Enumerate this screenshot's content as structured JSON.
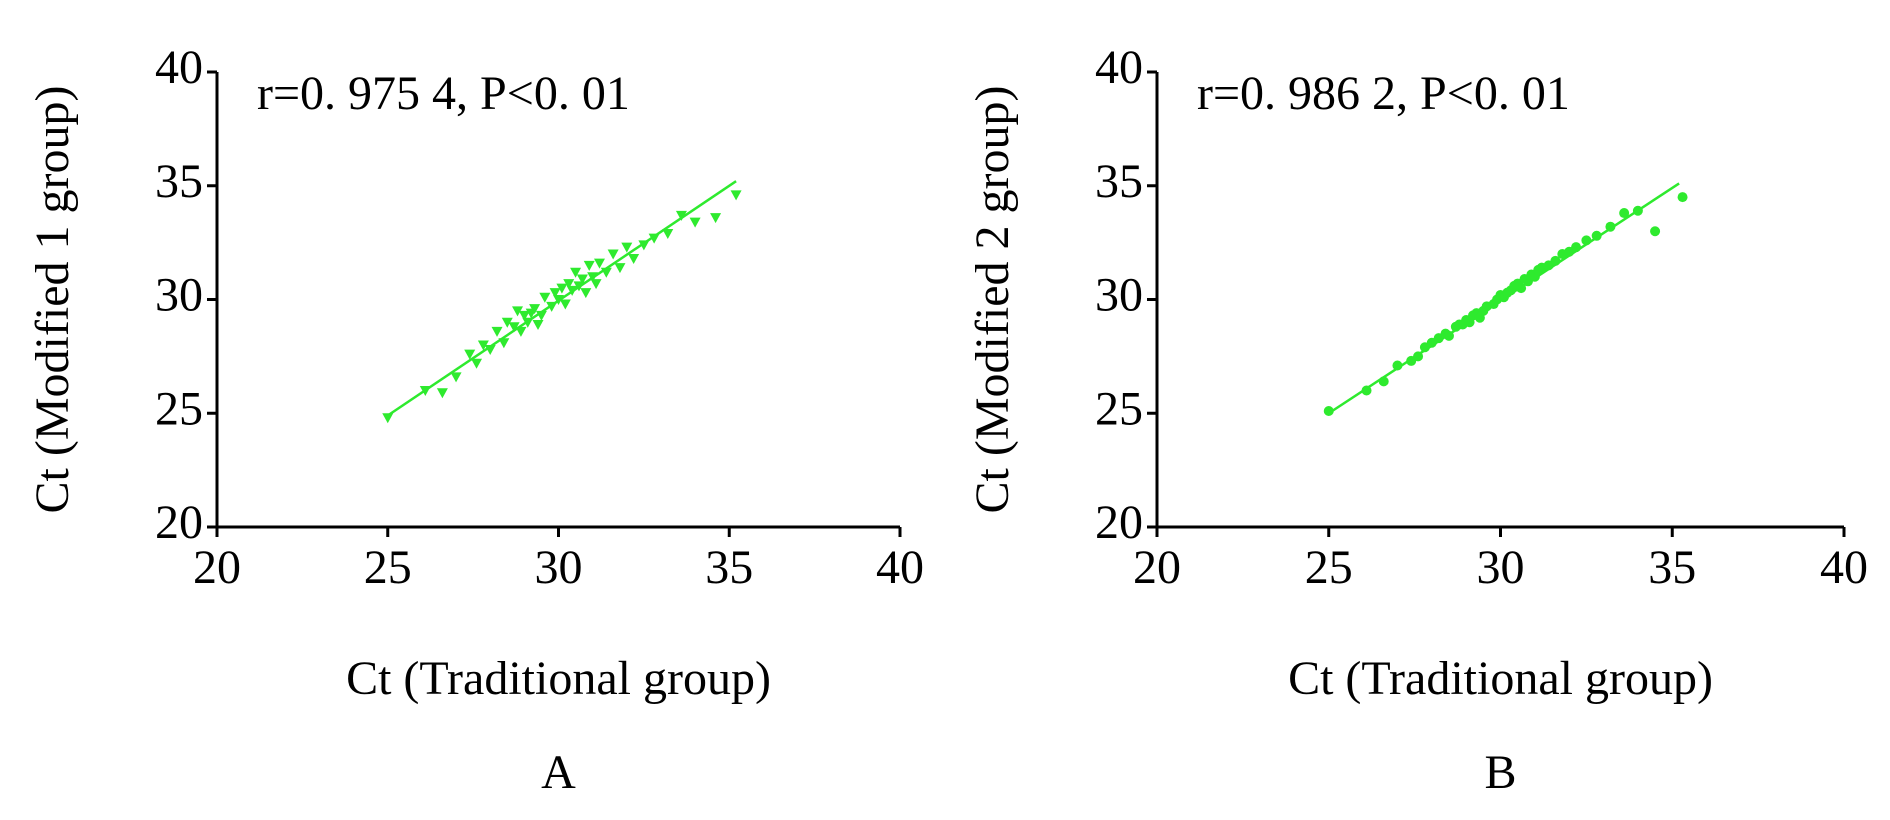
{
  "chart_data": [
    {
      "type": "scatter",
      "annotation": "r=0. 975 4, P<0. 01",
      "xlabel": "Ct (Traditional group)",
      "ylabel": "Ct (Modified 1 group)",
      "panel": "A",
      "marker": "triangle-down",
      "color": "#2eea2e",
      "x": [
        25.0,
        26.1,
        26.6,
        27.0,
        27.4,
        27.6,
        27.8,
        28.0,
        28.2,
        28.4,
        28.5,
        28.7,
        28.8,
        28.9,
        29.0,
        29.1,
        29.2,
        29.3,
        29.4,
        29.5,
        29.6,
        29.8,
        29.9,
        30.0,
        30.1,
        30.2,
        30.3,
        30.4,
        30.5,
        30.6,
        30.7,
        30.8,
        30.9,
        31.0,
        31.1,
        31.2,
        31.4,
        31.6,
        31.8,
        32.0,
        32.2,
        32.5,
        32.8,
        33.2,
        33.6,
        34.0,
        34.6,
        35.2
      ],
      "values": [
        24.8,
        26.0,
        25.9,
        26.6,
        27.6,
        27.2,
        28.0,
        27.8,
        28.6,
        28.1,
        29.0,
        28.8,
        29.5,
        28.6,
        29.3,
        29.0,
        29.4,
        29.6,
        28.9,
        29.3,
        30.1,
        29.7,
        30.3,
        30.0,
        30.5,
        29.8,
        30.7,
        30.4,
        31.2,
        30.6,
        30.9,
        30.3,
        31.5,
        31.0,
        30.7,
        31.6,
        31.2,
        32.0,
        31.4,
        32.3,
        31.8,
        32.4,
        32.7,
        32.9,
        33.7,
        33.4,
        33.6,
        34.6
      ],
      "fit": {
        "x": [
          25.0,
          35.2
        ],
        "y": [
          24.9,
          35.2
        ]
      },
      "xlim": [
        20,
        40
      ],
      "ylim": [
        20,
        40
      ],
      "xticks": [
        20,
        25,
        30,
        35,
        40
      ],
      "yticks": [
        20,
        25,
        30,
        35,
        40
      ]
    },
    {
      "type": "scatter",
      "annotation": "r=0. 986 2, P<0. 01",
      "xlabel": "Ct (Traditional group)",
      "ylabel": "Ct (Modified 2 group)",
      "panel": "B",
      "marker": "circle",
      "color": "#2eea2e",
      "x": [
        25.0,
        26.1,
        26.6,
        27.0,
        27.4,
        27.6,
        27.8,
        28.0,
        28.2,
        28.4,
        28.5,
        28.7,
        28.8,
        28.9,
        29.0,
        29.1,
        29.2,
        29.3,
        29.4,
        29.5,
        29.6,
        29.8,
        29.9,
        30.0,
        30.1,
        30.2,
        30.3,
        30.4,
        30.5,
        30.6,
        30.7,
        30.8,
        30.9,
        31.0,
        31.1,
        31.2,
        31.4,
        31.6,
        31.8,
        32.0,
        32.2,
        32.5,
        32.8,
        33.2,
        33.6,
        34.0,
        34.5,
        35.3
      ],
      "values": [
        25.1,
        26.0,
        26.4,
        27.1,
        27.3,
        27.5,
        27.9,
        28.1,
        28.3,
        28.5,
        28.4,
        28.8,
        28.9,
        28.9,
        29.1,
        29.0,
        29.3,
        29.4,
        29.2,
        29.5,
        29.7,
        29.8,
        30.0,
        30.2,
        30.1,
        30.3,
        30.4,
        30.6,
        30.7,
        30.5,
        30.9,
        30.8,
        31.1,
        31.0,
        31.3,
        31.4,
        31.5,
        31.7,
        32.0,
        32.1,
        32.3,
        32.6,
        32.8,
        33.2,
        33.8,
        33.9,
        33.0,
        34.5
      ],
      "fit": {
        "x": [
          25.0,
          35.2
        ],
        "y": [
          25.0,
          35.1
        ]
      },
      "xlim": [
        20,
        40
      ],
      "ylim": [
        20,
        40
      ],
      "xticks": [
        20,
        25,
        30,
        35,
        40
      ],
      "yticks": [
        20,
        25,
        30,
        35,
        40
      ]
    }
  ]
}
